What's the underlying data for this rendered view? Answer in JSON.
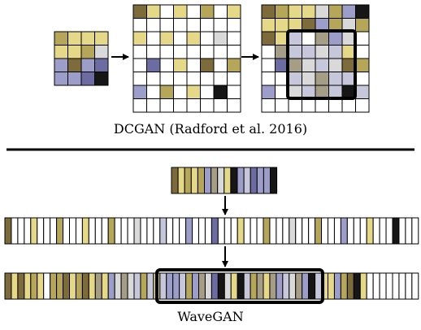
{
  "captions": {
    "dcgan": "DCGAN (Radford et al. 2016)",
    "wavegan": "WaveGAN"
  },
  "palette": {
    "0": "#ffffff",
    "1": "#7d6b3c",
    "2": "#b5a659",
    "3": "#e6d889",
    "4": "#d9d9d9",
    "5": "#9d9dca",
    "6": "#6c6ba2",
    "7": "#161616",
    "8": "#a59d86",
    "9": "#c7c7dc"
  },
  "colors": {
    "grid_line": "#000000",
    "divider": "#000000",
    "highlight_box": "#000000"
  },
  "dcgan": {
    "input_grid": [
      "2333",
      "3324",
      "5156",
      "5567"
    ],
    "upsampled_grid": [
      "13030203",
      "00000000",
      "30303040",
      "00000000",
      "06030102",
      "00000000",
      "50203070",
      "00000000"
    ],
    "conv_output_grid": [
      "12334257",
      "33315242",
      "13908540",
      "08994930",
      "06849412",
      "00948990",
      "50498979",
      "00000000"
    ]
  },
  "wavegan": {
    "input_strip": "1323258437596557",
    "upsampled_strip": "1000300020003000200040009000500060003000200040002000500030007000",
    "conv_output_strip": "1313230221321383548492939559258467437928385948579335217300000000"
  }
}
